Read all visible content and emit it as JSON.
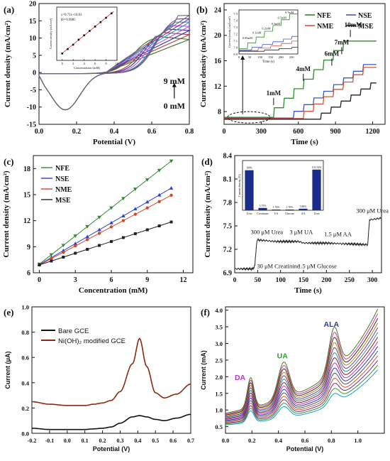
{
  "chart_data": [
    {
      "panel": "(a)",
      "type": "line",
      "xlabel": "Potential (V)",
      "ylabel": "Current density (mA/cm²)",
      "xlim": [
        0.0,
        0.8
      ],
      "ylim": [
        -15,
        20
      ],
      "xticks": [
        "0.0",
        "0.2",
        "0.4",
        "0.6",
        "0.8"
      ],
      "yticks": [
        "-15",
        "-10",
        "-5",
        "0",
        "5",
        "10",
        "15",
        "20"
      ],
      "annotations": [
        "9 mM",
        "0 mM"
      ],
      "series_colors": [
        "#3b6e28",
        "#b03a3a",
        "#2e2ea8",
        "#c34dd8",
        "#1f9ad0",
        "#7a3a94",
        "#6a6a6a"
      ],
      "cycles": [
        {
          "peak_v": 0.62,
          "peak_j": 10.5,
          "end_j": 9.6
        },
        {
          "peak_v": 0.66,
          "peak_j": 11.6,
          "end_j": 11.0
        },
        {
          "peak_v": 0.68,
          "peak_j": 12.6,
          "end_j": 12.2
        },
        {
          "peak_v": 0.7,
          "peak_j": 13.6,
          "end_j": 13.4
        },
        {
          "peak_v": 0.72,
          "peak_j": 14.6,
          "end_j": 14.6
        },
        {
          "peak_v": 0.73,
          "peak_j": 15.5,
          "end_j": 15.6
        },
        {
          "peak_v": 0.74,
          "peak_j": 16.5,
          "end_j": 16.6
        }
      ],
      "inset": {
        "xlabel": "Concentration (mM)",
        "ylabel": "Current density (mA/cm²)",
        "xticks": [
          "0",
          "2",
          "4",
          "6",
          "8",
          "10"
        ],
        "equation": "y=0.71x+10.63",
        "r2": "R²=0.9985",
        "x": [
          0,
          1,
          2,
          3,
          4,
          5,
          6,
          7,
          8,
          9
        ],
        "y": [
          10.6,
          11.3,
          12.0,
          12.8,
          13.5,
          14.2,
          14.9,
          15.6,
          16.3,
          17.0
        ]
      }
    },
    {
      "panel": "(b)",
      "type": "line",
      "xlabel": "Time (s)",
      "ylabel": "Current density (mA/cm²)",
      "xlim": [
        0,
        1300
      ],
      "ylim": [
        6,
        25
      ],
      "xticks": [
        "0",
        "300",
        "600",
        "900",
        "1200"
      ],
      "yticks": [
        "8",
        "12",
        "16",
        "20",
        "24"
      ],
      "series": [
        {
          "name": "NFE",
          "color": "#2e8b2e",
          "start": 7.1,
          "step_times": [
            400,
            480,
            560,
            640,
            720,
            800,
            880,
            960
          ],
          "step_size": 1.5
        },
        {
          "name": "NSE",
          "color": "#3a56c8",
          "start": 7.0,
          "step_times": [
            560,
            640,
            720,
            800,
            880,
            960,
            1040,
            1120
          ],
          "step_size": 1.05
        },
        {
          "name": "NME",
          "color": "#d2553a",
          "start": 6.9,
          "step_times": [
            640,
            720,
            800,
            880,
            960,
            1040,
            1120
          ],
          "step_size": 1.15
        },
        {
          "name": "MSE",
          "color": "#222222",
          "start": 6.8,
          "step_times": [
            780,
            860,
            940,
            1020,
            1100,
            1180
          ],
          "step_size": 0.95
        }
      ],
      "annotations": [
        "1mM",
        "4mM",
        "6mM",
        "7mM",
        "10mM"
      ],
      "inset": {
        "xlabel": "Time (s)",
        "ylabel": "Current density (mA/cm²)",
        "xticks": [
          "0",
          "50",
          "100",
          "150",
          "200",
          "250"
        ],
        "yticks": [
          "6.9",
          "7.0",
          "7.1",
          "7.2",
          "7.3",
          "7.4",
          "7.5"
        ],
        "annotations": [
          "0.05mM",
          "0.1mM",
          "0.2mM",
          "0.3mM",
          "0.5mM",
          "0.7mM"
        ]
      }
    },
    {
      "panel": "(c)",
      "type": "scatter",
      "xlabel": "Concentration (mM)",
      "ylabel": "Current density (mA/cm²)",
      "xlim": [
        -0.5,
        12.8
      ],
      "ylim": [
        6,
        19.5
      ],
      "xticks": [
        "0",
        "3",
        "6",
        "9",
        "12"
      ],
      "yticks": [
        "6",
        "9",
        "12",
        "15",
        "18"
      ],
      "x": [
        0,
        1,
        2,
        3,
        4,
        5,
        6,
        7,
        8,
        9,
        10,
        11
      ],
      "series": [
        {
          "name": "NFE",
          "color": "#2e8b2e",
          "marker": "triangle-down",
          "slope": 1.08,
          "intercept": 7.0
        },
        {
          "name": "NSE",
          "color": "#2f3fd0",
          "marker": "triangle-up",
          "slope": 0.8,
          "intercept": 6.95
        },
        {
          "name": "NME",
          "color": "#d14a2a",
          "marker": "circle",
          "slope": 0.73,
          "intercept": 6.9
        },
        {
          "name": "MSE",
          "color": "#222222",
          "marker": "square",
          "slope": 0.45,
          "intercept": 6.9
        }
      ]
    },
    {
      "panel": "(d)",
      "type": "line",
      "xlabel": "Time (s)",
      "ylabel": "Current density (mA/cm²)",
      "xlim": [
        0,
        320
      ],
      "ylim": [
        6.9,
        8.4
      ],
      "xticks": [
        "0",
        "50",
        "100",
        "150",
        "200",
        "250",
        "300"
      ],
      "yticks": [
        "6.9",
        "7.2",
        "7.5",
        "7.8",
        "8.1",
        "8.4"
      ],
      "trace": {
        "color": "#222222",
        "x": [
          0,
          40,
          44,
          48,
          50,
          90,
          100,
          140,
          150,
          190,
          200,
          240,
          250,
          285,
          290,
          294,
          298,
          320
        ],
        "y": [
          6.95,
          6.95,
          7.0,
          7.3,
          7.32,
          7.3,
          7.3,
          7.3,
          7.28,
          7.28,
          7.28,
          7.27,
          7.27,
          7.26,
          7.26,
          7.58,
          7.58,
          7.6
        ]
      },
      "annotations": [
        "300 μM Urea",
        "30 μM Creatinine",
        "3 μM UA",
        "1.5 μM Glucose",
        "1.5 μM AA",
        "300 μM Urea"
      ],
      "inset": {
        "type": "bar",
        "ylabel": "Current density (%)",
        "categories": [
          "Urea",
          "Creatinine",
          "UA",
          "Glucose",
          "AA",
          "Urea"
        ],
        "values": [
          100,
          5.75,
          1.76,
          1.76,
          3.86,
          101.54
        ],
        "labels": [
          "100%",
          "5.75%",
          "1.76%",
          "1.76%",
          "3.86%",
          "101.54%"
        ],
        "color": "#1a2b8a"
      }
    },
    {
      "panel": "(e)",
      "type": "line",
      "xlabel": "Potential (V)",
      "ylabel": "Current (μA)",
      "xlim": [
        -0.2,
        0.7
      ],
      "ylim": [
        0,
        1.0
      ],
      "xticks": [
        "-0.2",
        "-0.1",
        "0.0",
        "0.1",
        "0.2",
        "0.3",
        "0.4",
        "0.5",
        "0.6",
        "0.7"
      ],
      "yticks": [
        "0.0",
        "0.2",
        "0.4",
        "0.6",
        "0.8",
        "1.0"
      ],
      "series": [
        {
          "name": "Bare GCE",
          "color": "#111111",
          "base": [
            0.04,
            0.03,
            0.03,
            0.03,
            0.035,
            0.04,
            0.05,
            0.08,
            0.13,
            0.14,
            0.13,
            0.11,
            0.1,
            0.12,
            0.15
          ]
        },
        {
          "name": "Ni(OH)₂ modified GCE",
          "color": "#8b2a10",
          "base": [
            0.25,
            0.23,
            0.22,
            0.22,
            0.23,
            0.24,
            0.26,
            0.33,
            0.55,
            0.75,
            0.53,
            0.32,
            0.28,
            0.31,
            0.39
          ]
        }
      ],
      "x": [
        -0.2,
        -0.1,
        0.0,
        0.1,
        0.15,
        0.2,
        0.25,
        0.3,
        0.37,
        0.41,
        0.45,
        0.5,
        0.55,
        0.62,
        0.7
      ]
    },
    {
      "panel": "(f)",
      "type": "line",
      "xlabel": "Potential (V)",
      "ylabel": "Current (mA)",
      "xlim": [
        0.0,
        1.2
      ],
      "ylim": [
        0.3,
        4.1
      ],
      "xticks": [
        "0.0",
        "0.2",
        "0.4",
        "0.6",
        "0.8",
        "1.0"
      ],
      "yticks": [
        "0.5",
        "1.0",
        "1.5",
        "2.0",
        "2.5",
        "3.0",
        "3.5",
        "4.0"
      ],
      "annotations": [
        {
          "text": "DA",
          "color": "#c42ec9"
        },
        {
          "text": "UA",
          "color": "#2e9a2e"
        },
        {
          "text": "ALA",
          "color": "#1f3cba"
        }
      ],
      "series_colors": [
        "#1f9ad0",
        "#2e9a2e",
        "#7a2a8a",
        "#d2553a",
        "#555555",
        "#1f3cba",
        "#c42ec9",
        "#8b1a1a",
        "#3a8a8a",
        "#6a3aa8",
        "#b8860b",
        "#2e2e2e",
        "#d23a8a",
        "#4a7a2a"
      ],
      "curve_count": 14
    }
  ]
}
